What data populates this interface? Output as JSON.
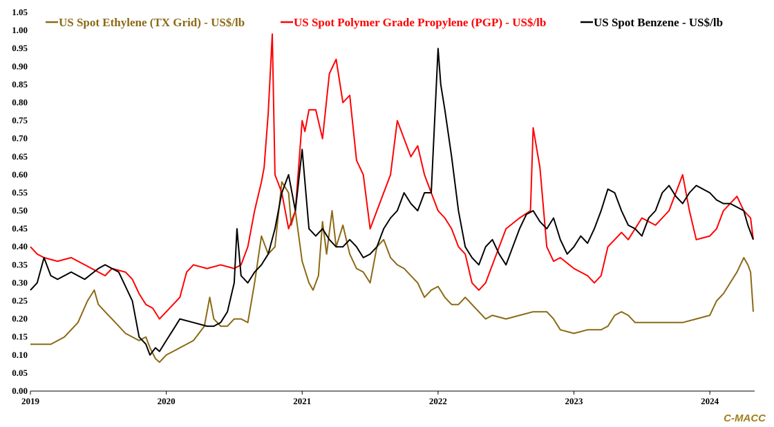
{
  "chart_data": {
    "type": "line",
    "title": "",
    "xlabel": "",
    "ylabel": "",
    "ylim": [
      0,
      1.05
    ],
    "yticks": [
      "0.00",
      "0.05",
      "0.10",
      "0.15",
      "0.20",
      "0.25",
      "0.30",
      "0.35",
      "0.40",
      "0.45",
      "0.50",
      "0.55",
      "0.60",
      "0.65",
      "0.70",
      "0.75",
      "0.80",
      "0.85",
      "0.90",
      "0.95",
      "1.00",
      "1.05"
    ],
    "xlim": [
      2019.0,
      2024.33
    ],
    "xticks": [
      {
        "value": 2019,
        "label": "2019"
      },
      {
        "value": 2020,
        "label": "2020"
      },
      {
        "value": 2021,
        "label": "2021"
      },
      {
        "value": 2022,
        "label": "2022"
      },
      {
        "value": 2023,
        "label": "2023"
      },
      {
        "value": 2024,
        "label": "2024"
      }
    ],
    "legend_position": "top",
    "series": [
      {
        "name": "US Spot Ethylene (TX Grid) - US$/lb",
        "color": "#8b6914",
        "x": [
          2019.0,
          2019.05,
          2019.15,
          2019.25,
          2019.35,
          2019.42,
          2019.47,
          2019.5,
          2019.55,
          2019.6,
          2019.7,
          2019.75,
          2019.8,
          2019.85,
          2019.88,
          2019.92,
          2019.95,
          2020.0,
          2020.1,
          2020.2,
          2020.28,
          2020.32,
          2020.35,
          2020.4,
          2020.45,
          2020.5,
          2020.55,
          2020.6,
          2020.65,
          2020.7,
          2020.75,
          2020.8,
          2020.85,
          2020.9,
          2020.92,
          2020.95,
          2021.0,
          2021.05,
          2021.08,
          2021.12,
          2021.15,
          2021.18,
          2021.22,
          2021.25,
          2021.3,
          2021.35,
          2021.4,
          2021.45,
          2021.5,
          2021.55,
          2021.6,
          2021.65,
          2021.7,
          2021.75,
          2021.8,
          2021.85,
          2021.9,
          2021.95,
          2022.0,
          2022.05,
          2022.1,
          2022.15,
          2022.2,
          2022.25,
          2022.3,
          2022.35,
          2022.4,
          2022.5,
          2022.6,
          2022.7,
          2022.8,
          2022.85,
          2022.9,
          2023.0,
          2023.1,
          2023.2,
          2023.25,
          2023.3,
          2023.35,
          2023.4,
          2023.45,
          2023.5,
          2023.6,
          2023.7,
          2023.8,
          2023.9,
          2024.0,
          2024.05,
          2024.1,
          2024.15,
          2024.2,
          2024.25,
          2024.28,
          2024.3,
          2024.32
        ],
        "values": [
          0.13,
          0.13,
          0.13,
          0.15,
          0.19,
          0.25,
          0.28,
          0.24,
          0.22,
          0.2,
          0.16,
          0.15,
          0.14,
          0.15,
          0.12,
          0.09,
          0.08,
          0.1,
          0.12,
          0.14,
          0.18,
          0.26,
          0.2,
          0.18,
          0.18,
          0.2,
          0.2,
          0.19,
          0.3,
          0.43,
          0.38,
          0.4,
          0.58,
          0.55,
          0.46,
          0.5,
          0.36,
          0.3,
          0.28,
          0.32,
          0.47,
          0.38,
          0.5,
          0.4,
          0.46,
          0.38,
          0.34,
          0.33,
          0.3,
          0.4,
          0.42,
          0.37,
          0.35,
          0.34,
          0.32,
          0.3,
          0.26,
          0.28,
          0.29,
          0.26,
          0.24,
          0.24,
          0.26,
          0.24,
          0.22,
          0.2,
          0.21,
          0.2,
          0.21,
          0.22,
          0.22,
          0.2,
          0.17,
          0.16,
          0.17,
          0.17,
          0.18,
          0.21,
          0.22,
          0.21,
          0.19,
          0.19,
          0.19,
          0.19,
          0.19,
          0.2,
          0.21,
          0.25,
          0.27,
          0.3,
          0.33,
          0.37,
          0.35,
          0.33,
          0.22
        ]
      },
      {
        "name": "US Spot Polymer Grade Propylene (PGP) - US$/lb",
        "color": "#ff0000",
        "x": [
          2019.0,
          2019.05,
          2019.1,
          2019.2,
          2019.3,
          2019.4,
          2019.5,
          2019.55,
          2019.6,
          2019.7,
          2019.75,
          2019.8,
          2019.85,
          2019.9,
          2019.95,
          2020.0,
          2020.1,
          2020.15,
          2020.2,
          2020.3,
          2020.4,
          2020.5,
          2020.55,
          2020.6,
          2020.65,
          2020.7,
          2020.72,
          2020.75,
          2020.78,
          2020.8,
          2020.82,
          2020.85,
          2020.9,
          2020.95,
          2021.0,
          2021.02,
          2021.05,
          2021.1,
          2021.15,
          2021.2,
          2021.25,
          2021.3,
          2021.35,
          2021.4,
          2021.45,
          2021.5,
          2021.55,
          2021.6,
          2021.65,
          2021.7,
          2021.75,
          2021.8,
          2021.85,
          2021.9,
          2021.95,
          2022.0,
          2022.05,
          2022.1,
          2022.15,
          2022.2,
          2022.25,
          2022.3,
          2022.35,
          2022.4,
          2022.5,
          2022.6,
          2022.68,
          2022.7,
          2022.75,
          2022.8,
          2022.85,
          2022.9,
          2023.0,
          2023.1,
          2023.15,
          2023.2,
          2023.25,
          2023.3,
          2023.35,
          2023.4,
          2023.5,
          2023.6,
          2023.7,
          2023.75,
          2023.8,
          2023.85,
          2023.9,
          2024.0,
          2024.05,
          2024.1,
          2024.15,
          2024.2,
          2024.25,
          2024.3,
          2024.32
        ],
        "values": [
          0.4,
          0.38,
          0.37,
          0.36,
          0.37,
          0.35,
          0.33,
          0.32,
          0.34,
          0.33,
          0.31,
          0.27,
          0.24,
          0.23,
          0.2,
          0.22,
          0.26,
          0.33,
          0.35,
          0.34,
          0.35,
          0.34,
          0.35,
          0.4,
          0.5,
          0.58,
          0.62,
          0.77,
          0.99,
          0.6,
          0.58,
          0.55,
          0.45,
          0.5,
          0.75,
          0.72,
          0.78,
          0.78,
          0.7,
          0.88,
          0.92,
          0.8,
          0.82,
          0.64,
          0.6,
          0.45,
          0.5,
          0.55,
          0.6,
          0.75,
          0.7,
          0.65,
          0.68,
          0.6,
          0.55,
          0.5,
          0.48,
          0.45,
          0.4,
          0.38,
          0.3,
          0.28,
          0.3,
          0.35,
          0.45,
          0.48,
          0.5,
          0.73,
          0.62,
          0.4,
          0.36,
          0.37,
          0.34,
          0.32,
          0.3,
          0.32,
          0.4,
          0.42,
          0.44,
          0.42,
          0.48,
          0.46,
          0.5,
          0.55,
          0.6,
          0.5,
          0.42,
          0.43,
          0.45,
          0.5,
          0.52,
          0.54,
          0.5,
          0.48,
          0.42
        ]
      },
      {
        "name": "US Spot Benzene - US$/lb",
        "color": "#000000",
        "x": [
          2019.0,
          2019.05,
          2019.1,
          2019.15,
          2019.2,
          2019.3,
          2019.4,
          2019.5,
          2019.55,
          2019.6,
          2019.65,
          2019.75,
          2019.8,
          2019.85,
          2019.88,
          2019.92,
          2019.95,
          2020.0,
          2020.05,
          2020.1,
          2020.2,
          2020.3,
          2020.35,
          2020.4,
          2020.45,
          2020.5,
          2020.52,
          2020.55,
          2020.6,
          2020.65,
          2020.7,
          2020.75,
          2020.8,
          2020.85,
          2020.9,
          2020.95,
          2021.0,
          2021.05,
          2021.1,
          2021.15,
          2021.2,
          2021.25,
          2021.3,
          2021.35,
          2021.4,
          2021.45,
          2021.5,
          2021.55,
          2021.6,
          2021.65,
          2021.7,
          2021.75,
          2021.8,
          2021.85,
          2021.9,
          2021.95,
          2022.0,
          2022.02,
          2022.05,
          2022.1,
          2022.15,
          2022.2,
          2022.25,
          2022.3,
          2022.35,
          2022.4,
          2022.45,
          2022.5,
          2022.55,
          2022.6,
          2022.65,
          2022.7,
          2022.75,
          2022.8,
          2022.85,
          2022.9,
          2022.95,
          2023.0,
          2023.05,
          2023.1,
          2023.15,
          2023.2,
          2023.25,
          2023.3,
          2023.35,
          2023.4,
          2023.45,
          2023.5,
          2023.55,
          2023.6,
          2023.65,
          2023.7,
          2023.75,
          2023.8,
          2023.85,
          2023.9,
          2023.95,
          2024.0,
          2024.05,
          2024.1,
          2024.15,
          2024.2,
          2024.25,
          2024.28,
          2024.3,
          2024.32
        ],
        "values": [
          0.28,
          0.3,
          0.37,
          0.32,
          0.31,
          0.33,
          0.31,
          0.34,
          0.35,
          0.34,
          0.33,
          0.25,
          0.15,
          0.13,
          0.1,
          0.12,
          0.11,
          0.14,
          0.17,
          0.2,
          0.19,
          0.18,
          0.18,
          0.19,
          0.22,
          0.3,
          0.45,
          0.32,
          0.3,
          0.33,
          0.35,
          0.38,
          0.45,
          0.55,
          0.6,
          0.5,
          0.67,
          0.45,
          0.43,
          0.45,
          0.42,
          0.4,
          0.4,
          0.42,
          0.4,
          0.37,
          0.38,
          0.4,
          0.45,
          0.48,
          0.5,
          0.55,
          0.52,
          0.5,
          0.55,
          0.55,
          0.95,
          0.85,
          0.78,
          0.65,
          0.5,
          0.4,
          0.37,
          0.35,
          0.4,
          0.42,
          0.38,
          0.35,
          0.4,
          0.45,
          0.49,
          0.5,
          0.47,
          0.45,
          0.48,
          0.42,
          0.38,
          0.4,
          0.43,
          0.41,
          0.45,
          0.5,
          0.56,
          0.55,
          0.5,
          0.46,
          0.45,
          0.43,
          0.48,
          0.5,
          0.55,
          0.57,
          0.54,
          0.52,
          0.55,
          0.57,
          0.56,
          0.55,
          0.53,
          0.52,
          0.52,
          0.51,
          0.5,
          0.46,
          0.44,
          0.42
        ]
      }
    ]
  },
  "watermark": "C-MACC"
}
